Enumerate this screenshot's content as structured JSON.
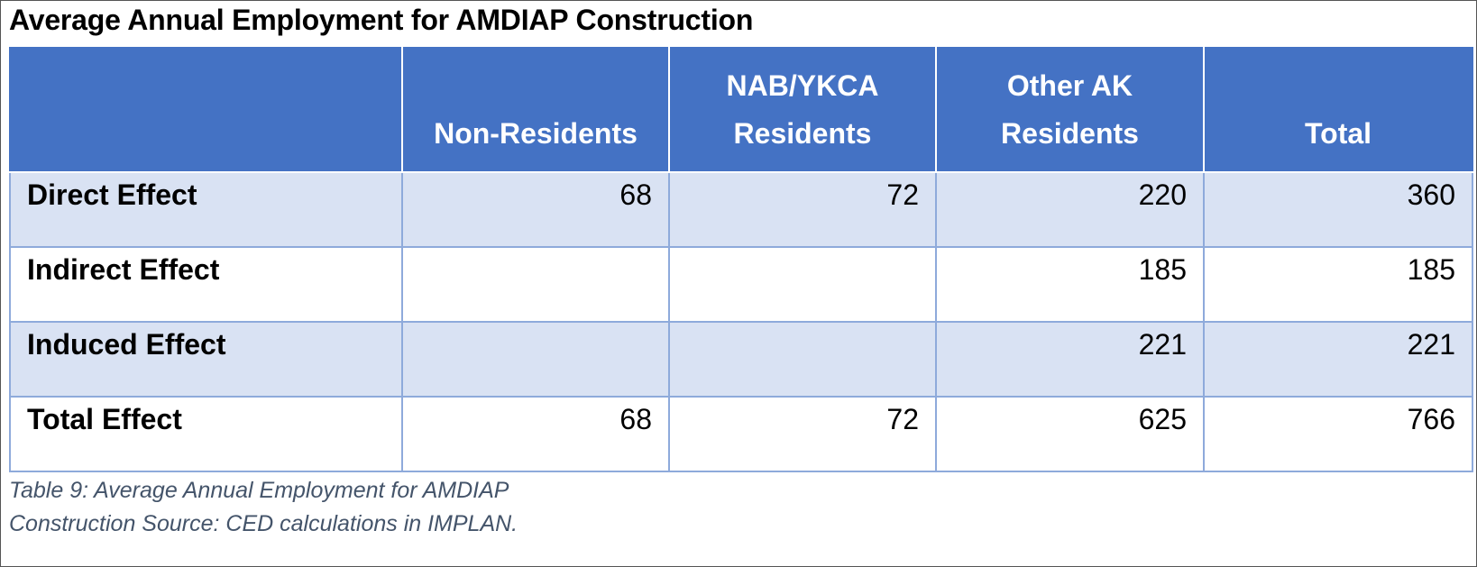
{
  "chart_data": {
    "type": "table",
    "title": "Average Annual Employment for AMDIAP Construction",
    "columns": [
      {
        "line1": "",
        "line2": ""
      },
      {
        "line1": "",
        "line2": "Non-Residents"
      },
      {
        "line1": "NAB/YKCA",
        "line2": "Residents"
      },
      {
        "line1": "Other AK",
        "line2": "Residents"
      },
      {
        "line1": "",
        "line2": "Total"
      }
    ],
    "rows": [
      {
        "label": "Direct Effect",
        "values": [
          "68",
          "72",
          "220",
          "360"
        ]
      },
      {
        "label": "Indirect Effect",
        "values": [
          "",
          "",
          "185",
          "185"
        ]
      },
      {
        "label": "Induced Effect",
        "values": [
          "",
          "",
          "221",
          "221"
        ]
      },
      {
        "label": "Total Effect",
        "values": [
          "68",
          "72",
          "625",
          "766"
        ]
      }
    ],
    "caption": {
      "line1": "Table 9: Average Annual Employment for AMDIAP",
      "line2": "Construction Source: CED calculations in IMPLAN."
    }
  },
  "colors": {
    "header_bg": "#4472c4",
    "band_bg": "#d9e2f3",
    "grid_line": "#8eaadb",
    "caption_text": "#44546a"
  }
}
